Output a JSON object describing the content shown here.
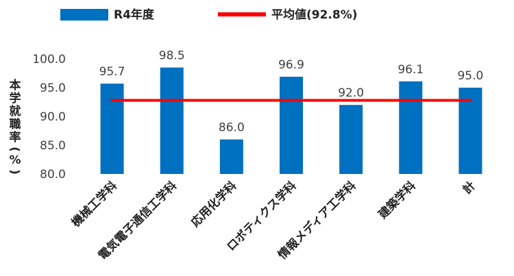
{
  "chart_data": {
    "type": "bar",
    "categories": [
      "機械工学科",
      "電気電子通信工学科",
      "応用化学科",
      "ロボティクス学科",
      "情報メディア工学科",
      "建築学科",
      "計"
    ],
    "series": [
      {
        "name": "R4年度",
        "values": [
          95.7,
          98.5,
          86.0,
          96.9,
          92.0,
          96.1,
          95.0
        ],
        "color": "#0070C0"
      }
    ],
    "reference_line": {
      "name": "平均値(92.8%)",
      "value": 92.8,
      "color": "#FF0000"
    },
    "data_labels": [
      "95.7",
      "98.5",
      "86.0",
      "96.9",
      "92.0",
      "96.1",
      "95.0"
    ],
    "ylabel": "本学就職率(%)",
    "ylim": [
      80,
      100
    ],
    "yticks": [
      "80.0",
      "85.0",
      "90.0",
      "95.0",
      "100.0"
    ],
    "grid": false,
    "legend_position": "top"
  }
}
